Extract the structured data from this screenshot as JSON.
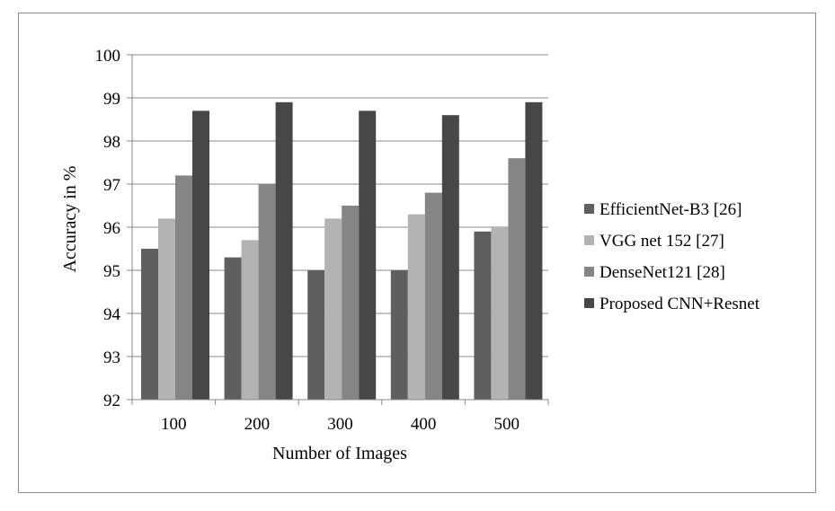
{
  "chart_data": {
    "type": "bar",
    "title": "",
    "xlabel": "Number of Images",
    "ylabel": "Accuracy in %",
    "categories": [
      "100",
      "200",
      "300",
      "400",
      "500"
    ],
    "ylim": [
      92,
      100
    ],
    "yticks": [
      "92",
      "93",
      "94",
      "95",
      "96",
      "97",
      "98",
      "99",
      "100"
    ],
    "grid": true,
    "legend_position": "right",
    "series": [
      {
        "name": "EfficientNet-B3 [26]",
        "color": "#5f5f5f",
        "values": [
          95.5,
          95.3,
          95.0,
          95.0,
          95.9
        ]
      },
      {
        "name": "VGG net 152 [27]",
        "color": "#b3b3b3",
        "values": [
          96.2,
          95.7,
          96.2,
          96.3,
          96.0
        ]
      },
      {
        "name": "DenseNet121 [28]",
        "color": "#858585",
        "values": [
          97.2,
          97.0,
          96.5,
          96.8,
          97.6
        ]
      },
      {
        "name": "Proposed CNN+Resnet",
        "color": "#474747",
        "values": [
          98.7,
          98.9,
          98.7,
          98.6,
          98.9
        ]
      }
    ]
  }
}
